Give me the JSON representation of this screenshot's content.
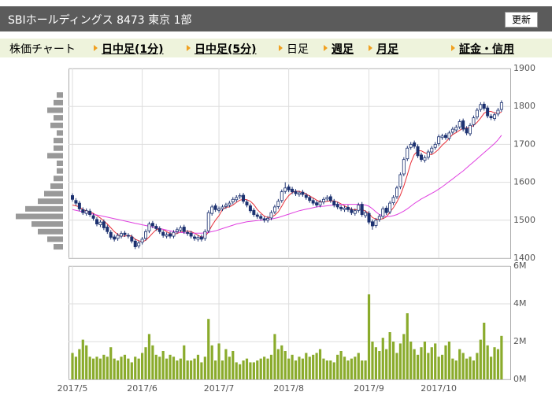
{
  "header": {
    "title": "SBIホールディングス 8473 東京 1部",
    "button": "更新"
  },
  "nav": [
    "株価チャート",
    "日中足(1分)",
    "日中足(5分)",
    "日足",
    "週足",
    "月足",
    "証金・信用"
  ],
  "chart_data": {
    "type": "candlestick",
    "categories": [
      "2017/5",
      null,
      null,
      null,
      null,
      null,
      null,
      null,
      null,
      null,
      null,
      null,
      null,
      null,
      null,
      null,
      null,
      null,
      null,
      null,
      "2017/6",
      null,
      null,
      null,
      null,
      null,
      null,
      null,
      null,
      null,
      null,
      null,
      null,
      null,
      null,
      null,
      null,
      null,
      null,
      null,
      null,
      null,
      "2017/7",
      null,
      null,
      null,
      null,
      null,
      null,
      null,
      null,
      null,
      null,
      null,
      null,
      null,
      null,
      null,
      null,
      null,
      null,
      null,
      "2017/8",
      null,
      null,
      null,
      null,
      null,
      null,
      null,
      null,
      null,
      null,
      null,
      null,
      null,
      null,
      null,
      null,
      null,
      null,
      null,
      null,
      null,
      null,
      "2017/9",
      null,
      null,
      null,
      null,
      null,
      null,
      null,
      null,
      null,
      null,
      null,
      null,
      null,
      null,
      null,
      null,
      null,
      null,
      null,
      "2017/10",
      null,
      null,
      null,
      null,
      null,
      null,
      null,
      null,
      null,
      null,
      null,
      null,
      null,
      null,
      null,
      null,
      null,
      null
    ],
    "open": [
      1565,
      1552,
      1545,
      1528,
      1518,
      1524,
      1512,
      1502,
      1488,
      1496,
      1482,
      1468,
      1456,
      1452,
      1458,
      1466,
      1460,
      1456,
      1445,
      1432,
      1442,
      1452,
      1472,
      1492,
      1484,
      1478,
      1468,
      1458,
      1464,
      1458,
      1470,
      1474,
      1482,
      1468,
      1466,
      1456,
      1450,
      1456,
      1452,
      1472,
      1518,
      1538,
      1526,
      1530,
      1536,
      1540,
      1548,
      1554,
      1562,
      1566,
      1548,
      1538,
      1526,
      1514,
      1510,
      1504,
      1500,
      1506,
      1522,
      1536,
      1552,
      1576,
      1588,
      1582,
      1576,
      1568,
      1574,
      1566,
      1560,
      1552,
      1546,
      1540,
      1548,
      1556,
      1562,
      1550,
      1542,
      1534,
      1528,
      1534,
      1528,
      1518,
      1526,
      1542,
      1512,
      1518,
      1496,
      1486,
      1502,
      1510,
      1532,
      1522,
      1546,
      1562,
      1588,
      1622,
      1662,
      1692,
      1704,
      1694,
      1672,
      1658,
      1666,
      1680,
      1692,
      1702,
      1718,
      1724,
      1716,
      1732,
      1738,
      1746,
      1762,
      1742,
      1728,
      1752,
      1772,
      1792,
      1806,
      1796,
      1774,
      1768,
      1780,
      1792
    ],
    "high": [
      1571,
      1558,
      1551,
      1534,
      1531,
      1530,
      1518,
      1508,
      1501,
      1502,
      1488,
      1474,
      1462,
      1466,
      1471,
      1472,
      1466,
      1462,
      1451,
      1446,
      1456,
      1476,
      1496,
      1498,
      1490,
      1484,
      1474,
      1468,
      1470,
      1474,
      1481,
      1486,
      1488,
      1474,
      1472,
      1462,
      1461,
      1462,
      1476,
      1526,
      1541,
      1544,
      1536,
      1541,
      1546,
      1551,
      1561,
      1566,
      1571,
      1572,
      1554,
      1544,
      1532,
      1520,
      1516,
      1510,
      1511,
      1526,
      1541,
      1556,
      1581,
      1600,
      1594,
      1588,
      1582,
      1578,
      1580,
      1572,
      1566,
      1558,
      1552,
      1554,
      1561,
      1566,
      1568,
      1556,
      1548,
      1540,
      1538,
      1540,
      1534,
      1531,
      1546,
      1548,
      1526,
      1524,
      1502,
      1506,
      1516,
      1536,
      1538,
      1551,
      1566,
      1591,
      1626,
      1666,
      1696,
      1706,
      1710,
      1700,
      1678,
      1671,
      1686,
      1696,
      1706,
      1726,
      1728,
      1730,
      1736,
      1746,
      1751,
      1766,
      1768,
      1748,
      1756,
      1776,
      1796,
      1811,
      1812,
      1802,
      1780,
      1784,
      1796,
      1816
    ],
    "low": [
      1549,
      1539,
      1524,
      1514,
      1512,
      1509,
      1499,
      1484,
      1482,
      1474,
      1464,
      1449,
      1444,
      1446,
      1452,
      1456,
      1452,
      1439,
      1424,
      1426,
      1436,
      1446,
      1466,
      1479,
      1472,
      1464,
      1454,
      1452,
      1452,
      1452,
      1464,
      1468,
      1464,
      1459,
      1452,
      1446,
      1444,
      1444,
      1446,
      1466,
      1512,
      1522,
      1520,
      1524,
      1530,
      1534,
      1542,
      1548,
      1556,
      1544,
      1534,
      1519,
      1509,
      1504,
      1499,
      1494,
      1494,
      1500,
      1516,
      1530,
      1546,
      1570,
      1574,
      1569,
      1564,
      1562,
      1562,
      1554,
      1546,
      1539,
      1534,
      1534,
      1542,
      1550,
      1546,
      1534,
      1529,
      1524,
      1522,
      1522,
      1514,
      1512,
      1520,
      1509,
      1506,
      1489,
      1475,
      1480,
      1496,
      1504,
      1514,
      1516,
      1540,
      1556,
      1582,
      1616,
      1656,
      1686,
      1689,
      1664,
      1654,
      1652,
      1660,
      1674,
      1686,
      1696,
      1712,
      1712,
      1710,
      1726,
      1732,
      1740,
      1734,
      1724,
      1722,
      1746,
      1766,
      1786,
      1789,
      1769,
      1764,
      1762,
      1774,
      1786
    ],
    "close": [
      1555,
      1545,
      1530,
      1520,
      1525,
      1515,
      1505,
      1490,
      1495,
      1480,
      1470,
      1455,
      1450,
      1460,
      1465,
      1462,
      1458,
      1445,
      1430,
      1440,
      1450,
      1470,
      1490,
      1485,
      1478,
      1470,
      1460,
      1462,
      1458,
      1468,
      1475,
      1480,
      1470,
      1465,
      1458,
      1452,
      1455,
      1450,
      1470,
      1520,
      1535,
      1528,
      1530,
      1535,
      1540,
      1545,
      1555,
      1560,
      1565,
      1550,
      1540,
      1525,
      1515,
      1510,
      1505,
      1500,
      1505,
      1520,
      1535,
      1550,
      1575,
      1585,
      1580,
      1575,
      1570,
      1572,
      1568,
      1560,
      1552,
      1545,
      1540,
      1548,
      1555,
      1560,
      1552,
      1540,
      1535,
      1530,
      1532,
      1528,
      1520,
      1525,
      1540,
      1515,
      1520,
      1495,
      1485,
      1500,
      1510,
      1530,
      1520,
      1545,
      1560,
      1585,
      1620,
      1660,
      1690,
      1700,
      1695,
      1670,
      1660,
      1665,
      1680,
      1690,
      1700,
      1720,
      1722,
      1718,
      1730,
      1740,
      1745,
      1760,
      1740,
      1730,
      1750,
      1770,
      1790,
      1805,
      1795,
      1775,
      1770,
      1778,
      1790,
      1810
    ],
    "up_color": "#ffffff",
    "down_color": "#1c3170",
    "edge_color": "#1c3170",
    "ylim": [
      1400,
      1900
    ],
    "yticks": [
      1400,
      1500,
      1600,
      1700,
      1800,
      1900
    ],
    "grid": true,
    "moving_averages": [
      {
        "color": "#e8303a",
        "values": [
          1540,
          1538,
          1535,
          1528,
          1525,
          1522,
          1518,
          1512,
          1506,
          1498,
          1490,
          1480,
          1470,
          1462,
          1458,
          1458,
          1460,
          1458,
          1450,
          1446,
          1443,
          1447,
          1456,
          1466,
          1475,
          1478,
          1476,
          1470,
          1465,
          1463,
          1465,
          1469,
          1471,
          1471,
          1470,
          1466,
          1460,
          1456,
          1456,
          1470,
          1486,
          1500,
          1512,
          1528,
          1534,
          1535,
          1540,
          1547,
          1553,
          1555,
          1554,
          1550,
          1541,
          1528,
          1519,
          1511,
          1507,
          1508,
          1513,
          1522,
          1537,
          1553,
          1565,
          1573,
          1577,
          1576,
          1573,
          1569,
          1564,
          1559,
          1553,
          1549,
          1548,
          1550,
          1551,
          1551,
          1548,
          1543,
          1538,
          1533,
          1529,
          1527,
          1529,
          1528,
          1524,
          1518,
          1507,
          1503,
          1502,
          1504,
          1509,
          1521,
          1533,
          1548,
          1566,
          1590,
          1620,
          1651,
          1673,
          1683,
          1683,
          1678,
          1674,
          1673,
          1679,
          1687,
          1698,
          1706,
          1716,
          1726,
          1731,
          1737,
          1743,
          1743,
          1745,
          1750,
          1758,
          1769,
          1782,
          1787,
          1787,
          1783,
          1782,
          1785
        ]
      },
      {
        "color": "#e040e0",
        "values": [
          1528,
          1526,
          1524,
          1522,
          1520,
          1518,
          1516,
          1514,
          1512,
          1510,
          1508,
          1506,
          1504,
          1502,
          1500,
          1498,
          1496,
          1494,
          1492,
          1490,
          1488,
          1486,
          1484,
          1482,
          1480,
          1478,
          1476,
          1474,
          1472,
          1470,
          1469,
          1468,
          1467,
          1466,
          1466,
          1466,
          1466,
          1466,
          1467,
          1468,
          1470,
          1472,
          1475,
          1478,
          1481,
          1484,
          1487,
          1490,
          1492,
          1494,
          1496,
          1497,
          1498,
          1499,
          1500,
          1501,
          1502,
          1503,
          1505,
          1507,
          1510,
          1513,
          1516,
          1519,
          1522,
          1525,
          1527,
          1529,
          1531,
          1533,
          1535,
          1536,
          1537,
          1538,
          1539,
          1540,
          1541,
          1542,
          1542,
          1542,
          1542,
          1542,
          1542,
          1541,
          1540,
          1537,
          1530,
          1522,
          1515,
          1512,
          1510,
          1510,
          1512,
          1515,
          1519,
          1524,
          1530,
          1537,
          1544,
          1550,
          1556,
          1561,
          1566,
          1571,
          1576,
          1582,
          1588,
          1595,
          1602,
          1609,
          1616,
          1623,
          1630,
          1638,
          1646,
          1654,
          1662,
          1670,
          1678,
          1686,
          1694,
          1702,
          1712,
          1724
        ]
      }
    ],
    "volume": {
      "color": "#8aab2c",
      "values": [
        1.4,
        1.2,
        1.6,
        2.1,
        1.8,
        1.2,
        1.1,
        1.2,
        1.1,
        1.3,
        1.2,
        1.7,
        1.1,
        1.0,
        1.2,
        1.3,
        1.1,
        0.9,
        1.2,
        1.1,
        1.4,
        1.7,
        2.4,
        1.8,
        1.3,
        1.2,
        1.5,
        1.1,
        1.3,
        1.2,
        1.0,
        1.1,
        1.8,
        1.0,
        1.0,
        1.1,
        1.3,
        0.9,
        1.2,
        3.2,
        1.8,
        1.0,
        1.9,
        1.0,
        1.6,
        1.2,
        1.5,
        0.9,
        0.8,
        1.0,
        1.1,
        0.9,
        0.9,
        1.0,
        1.1,
        1.2,
        1.1,
        1.3,
        2.4,
        1.6,
        1.8,
        1.5,
        1.1,
        1.3,
        1.0,
        1.2,
        1.1,
        1.4,
        1.2,
        1.3,
        1.4,
        1.6,
        1.1,
        1.0,
        1.0,
        0.9,
        1.3,
        1.5,
        1.2,
        1.0,
        1.1,
        1.2,
        1.4,
        1.0,
        1.0,
        4.5,
        2.0,
        1.7,
        1.5,
        2.2,
        1.6,
        2.5,
        2.0,
        1.4,
        1.9,
        2.4,
        3.5,
        2.0,
        1.6,
        1.3,
        1.7,
        2.0,
        1.4,
        1.7,
        1.9,
        1.2,
        1.3,
        1.8,
        2.0,
        1.1,
        1.0,
        1.6,
        1.4,
        1.1,
        1.2,
        1.0,
        1.4,
        2.1,
        3.0,
        1.8,
        1.2,
        1.7,
        1.6,
        2.3
      ],
      "ylim": [
        0,
        6
      ],
      "yticks": [
        {
          "value": 0,
          "label": "0M"
        },
        {
          "value": 2,
          "label": "2M"
        },
        {
          "value": 4,
          "label": "4M"
        },
        {
          "value": 6,
          "label": "6M"
        }
      ]
    },
    "volume_profile": {
      "color": "#999999",
      "prices": [
        1430,
        1450,
        1470,
        1490,
        1510,
        1530,
        1550,
        1570,
        1590,
        1610,
        1630,
        1650,
        1670,
        1690,
        1710,
        1730,
        1750,
        1770,
        1790,
        1810,
        1830
      ],
      "values": [
        3,
        5,
        8,
        10,
        15,
        12,
        8,
        6,
        4,
        3,
        2,
        2,
        5,
        3,
        3,
        2,
        4,
        3,
        5,
        3,
        2
      ]
    }
  }
}
